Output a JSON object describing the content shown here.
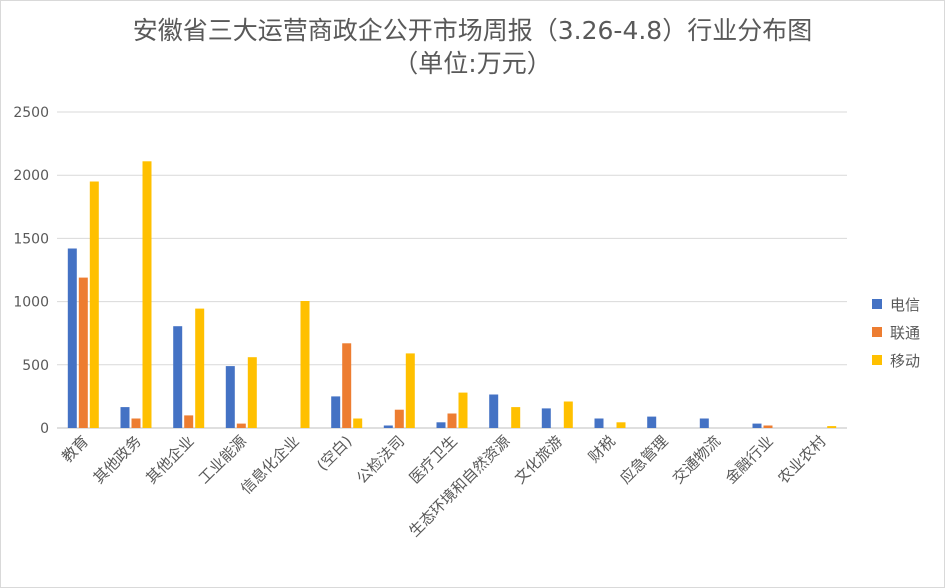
{
  "chart_data": {
    "type": "bar",
    "title": "安徽省三大运营商政企公开市场周报（3.26-4.8）行业分布图",
    "subtitle": "（单位:万元）",
    "categories": [
      "教育",
      "其他政务",
      "其他企业",
      "工业能源",
      "信息化企业",
      "(空白)",
      "公检法司",
      "医疗卫生",
      "生态环境和自然资源",
      "文化旅游",
      "财税",
      "应急管理",
      "交通物流",
      "金融行业",
      "农业农村"
    ],
    "series": [
      {
        "name": "电信",
        "color": "#4472c4",
        "values": [
          1420,
          165,
          805,
          490,
          0,
          250,
          20,
          45,
          265,
          155,
          75,
          90,
          75,
          35,
          0
        ]
      },
      {
        "name": "联通",
        "color": "#ed7d31",
        "values": [
          1190,
          75,
          100,
          35,
          0,
          670,
          145,
          115,
          0,
          0,
          0,
          0,
          0,
          20,
          0
        ]
      },
      {
        "name": "移动",
        "color": "#ffc000",
        "values": [
          1950,
          2110,
          945,
          560,
          1005,
          75,
          590,
          280,
          165,
          210,
          45,
          0,
          0,
          0,
          15
        ]
      }
    ],
    "y_ticks": [
      "0",
      "500",
      "1000",
      "1500",
      "2000",
      "2500"
    ],
    "ylim": [
      0,
      2500
    ],
    "grid": true,
    "legend": "right"
  }
}
